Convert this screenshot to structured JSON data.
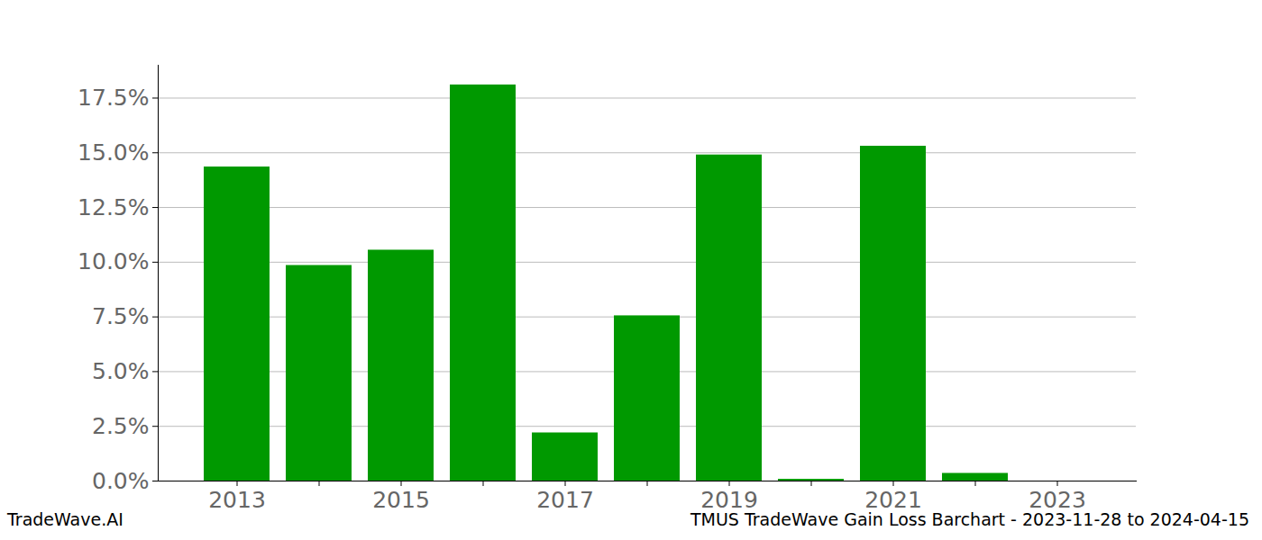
{
  "chart_data": {
    "type": "bar",
    "title": "TMUS TradeWave Gain Loss Barchart - 2023-11-28 to 2024-04-15",
    "annotations": [
      "TradeWave.AI"
    ],
    "categories": [
      "2013",
      null,
      "2015",
      null,
      "2017",
      null,
      "2019",
      null,
      "2021",
      null,
      "2023"
    ],
    "values": [
      14.35,
      9.85,
      10.55,
      18.1,
      2.2,
      7.55,
      14.9,
      0.08,
      15.3,
      0.35,
      0
    ],
    "color": "#009900",
    "ylim": [
      0,
      19
    ],
    "yticks": [
      {
        "value": 0,
        "label": "0.0%"
      },
      {
        "value": 2.5,
        "label": "2.5%"
      },
      {
        "value": 5,
        "label": "5.0%"
      },
      {
        "value": 7.5,
        "label": "7.5%"
      },
      {
        "value": 10,
        "label": "10.0%"
      },
      {
        "value": 12.5,
        "label": "12.5%"
      },
      {
        "value": 15,
        "label": "15.0%"
      },
      {
        "value": 17.5,
        "label": "17.5%"
      }
    ],
    "grid": true
  }
}
